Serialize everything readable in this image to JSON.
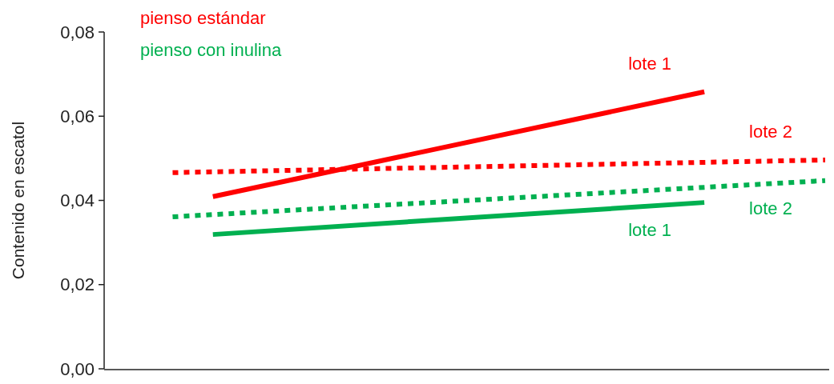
{
  "chart_data": {
    "type": "line",
    "ylabel": "Contenido en escatol",
    "ylim": [
      0,
      0.08
    ],
    "categories": [
      null,
      null,
      null,
      null,
      null,
      null,
      null,
      null,
      null,
      null,
      null,
      null,
      null,
      null,
      null,
      null,
      null,
      null,
      null,
      null,
      null,
      null,
      null,
      null,
      null,
      null,
      null,
      null,
      null,
      null,
      null,
      null,
      null,
      null,
      null,
      null,
      null,
      null,
      null,
      null,
      null,
      null,
      null,
      null,
      null,
      null,
      null,
      null,
      null,
      null,
      null,
      null,
      null,
      null,
      null,
      null,
      null,
      null,
      null,
      null,
      null,
      null,
      null,
      null,
      null,
      null,
      null,
      null,
      null,
      null,
      null,
      null,
      null,
      null,
      null,
      null,
      null,
      null,
      null,
      null,
      null,
      null,
      null,
      null,
      null,
      null,
      null,
      null,
      null,
      null
    ],
    "yticks": [
      {
        "value": 0,
        "label": "0,00"
      },
      {
        "value": 0.02,
        "label": "0,02"
      },
      {
        "value": 0.04,
        "label": "0,04"
      },
      {
        "value": 0.06,
        "label": "0,06"
      },
      {
        "value": 0.08,
        "label": "0,08"
      }
    ],
    "grid": false,
    "marker": "none",
    "annotations": [
      "pienso estándar",
      "pienso con inulina"
    ],
    "series": [
      {
        "name": "lote 1",
        "color": "#ff0000",
        "line_style": "solid",
        "values": [
          null,
          null,
          null,
          null,
          null,
          null,
          null,
          null,
          null,
          null,
          null,
          null,
          null,
          0.0409,
          null,
          null,
          null,
          null,
          null,
          null,
          null,
          null,
          null,
          null,
          null,
          null,
          null,
          null,
          null,
          null,
          null,
          null,
          null,
          null,
          null,
          null,
          null,
          null,
          null,
          null,
          null,
          null,
          null,
          null,
          null,
          null,
          null,
          null,
          null,
          null,
          null,
          null,
          null,
          null,
          null,
          null,
          null,
          null,
          null,
          null,
          null,
          null,
          null,
          null,
          null,
          null,
          null,
          null,
          null,
          null,
          null,
          null,
          null,
          null,
          0.0658,
          null,
          null,
          null,
          null,
          null,
          null,
          null,
          null,
          null,
          null,
          null,
          null,
          null,
          null,
          null
        ]
      },
      {
        "name": "lote 1",
        "color": "#00b050",
        "line_style": "solid",
        "values": [
          null,
          null,
          null,
          null,
          null,
          null,
          null,
          null,
          null,
          null,
          null,
          null,
          null,
          0.0319,
          null,
          null,
          null,
          null,
          null,
          null,
          null,
          null,
          null,
          null,
          null,
          null,
          null,
          null,
          null,
          null,
          null,
          null,
          null,
          null,
          null,
          null,
          null,
          null,
          null,
          null,
          null,
          null,
          null,
          null,
          null,
          null,
          null,
          null,
          null,
          null,
          null,
          null,
          null,
          null,
          null,
          null,
          null,
          null,
          null,
          null,
          null,
          null,
          null,
          null,
          null,
          null,
          null,
          null,
          null,
          null,
          null,
          null,
          null,
          null,
          0.0395,
          null,
          null,
          null,
          null,
          null,
          null,
          null,
          null,
          null,
          null,
          null,
          null,
          null,
          null,
          null
        ]
      },
      {
        "name": "lote 2",
        "color": "#ff0000",
        "line_style": "dotted",
        "values": [
          null,
          null,
          null,
          null,
          null,
          null,
          null,
          null,
          0.0466,
          null,
          null,
          null,
          null,
          null,
          null,
          null,
          null,
          null,
          null,
          null,
          null,
          null,
          null,
          null,
          null,
          null,
          null,
          null,
          null,
          null,
          null,
          null,
          null,
          null,
          null,
          null,
          null,
          null,
          null,
          null,
          null,
          null,
          null,
          null,
          null,
          null,
          null,
          null,
          null,
          null,
          null,
          null,
          null,
          null,
          null,
          null,
          null,
          null,
          null,
          null,
          null,
          null,
          null,
          null,
          null,
          null,
          null,
          null,
          null,
          null,
          null,
          null,
          null,
          null,
          null,
          null,
          null,
          null,
          null,
          null,
          null,
          null,
          null,
          null,
          null,
          null,
          null,
          null,
          null,
          0.0496
        ]
      },
      {
        "name": "lote 2",
        "color": "#00b050",
        "line_style": "dotted",
        "values": [
          null,
          null,
          null,
          null,
          null,
          null,
          null,
          null,
          0.0361,
          null,
          null,
          null,
          null,
          null,
          null,
          null,
          null,
          null,
          null,
          null,
          null,
          null,
          null,
          null,
          null,
          null,
          null,
          null,
          null,
          null,
          null,
          null,
          null,
          null,
          null,
          null,
          null,
          null,
          null,
          null,
          null,
          null,
          null,
          null,
          null,
          null,
          null,
          null,
          null,
          null,
          null,
          null,
          null,
          null,
          null,
          null,
          null,
          null,
          null,
          null,
          null,
          null,
          null,
          null,
          null,
          null,
          null,
          null,
          null,
          null,
          null,
          null,
          null,
          null,
          null,
          null,
          null,
          null,
          null,
          null,
          null,
          null,
          null,
          null,
          null,
          null,
          null,
          null,
          null,
          0.0447
        ]
      }
    ]
  }
}
